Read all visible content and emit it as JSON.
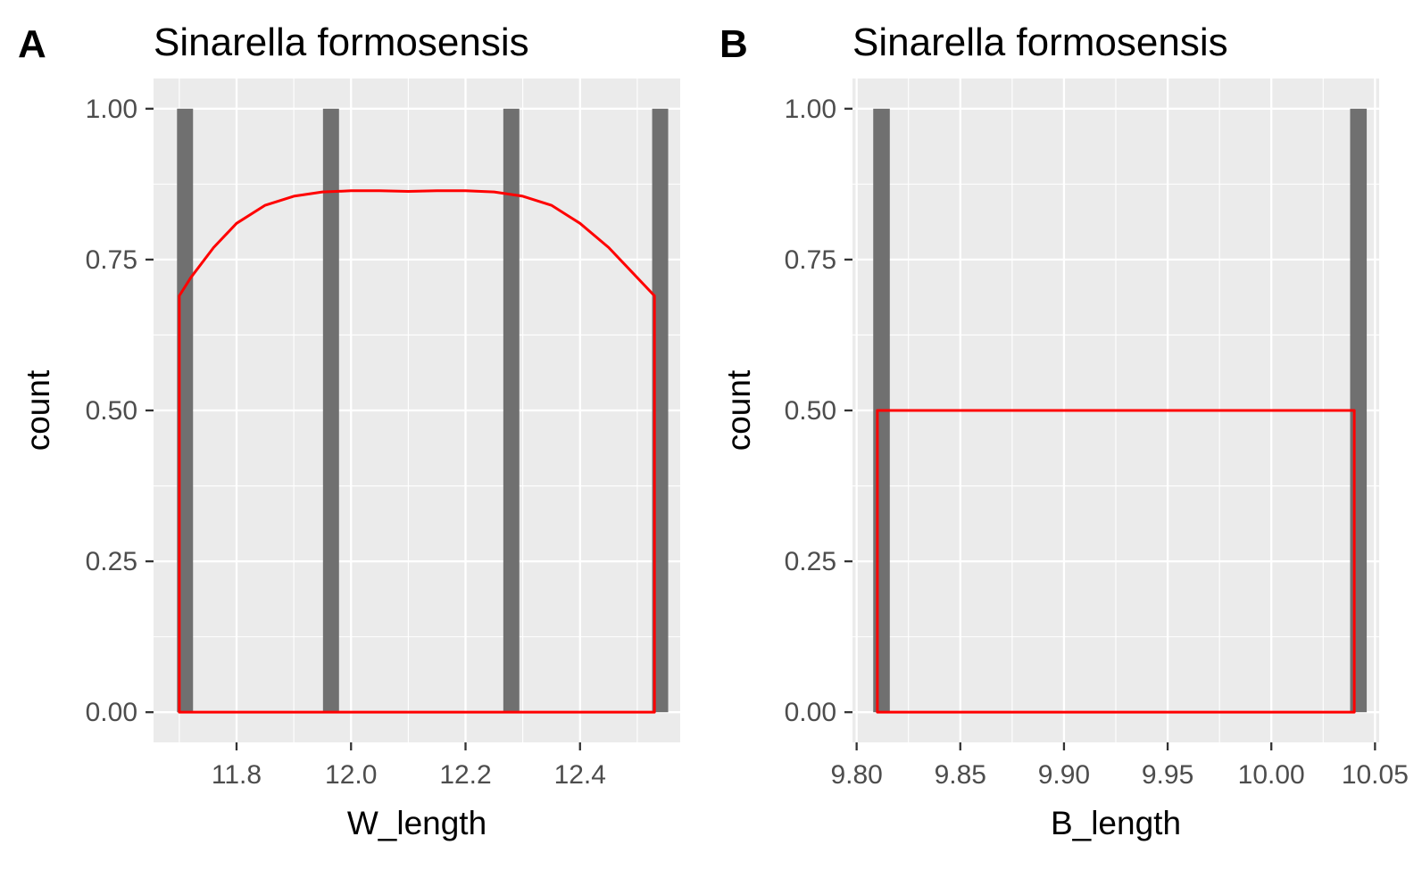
{
  "chart_data": [
    {
      "type": "bar",
      "panel_tag": "A",
      "title": "Sinarella formosensis",
      "xlabel": "W_length",
      "ylabel": "count",
      "xlim": [
        11.655,
        12.575
      ],
      "ylim": [
        -0.05,
        1.05
      ],
      "xticks": [
        11.8,
        12.0,
        12.2,
        12.4
      ],
      "xtick_labels": [
        "11.8",
        "12.0",
        "12.2",
        "12.4"
      ],
      "yticks": [
        0,
        0.25,
        0.5,
        0.75,
        1.0
      ],
      "ytick_labels": [
        "0.00",
        "0.25",
        "0.50",
        "0.75",
        "1.00"
      ],
      "grid": true,
      "bars": [
        {
          "x": 11.71,
          "count": 1
        },
        {
          "x": 11.965,
          "count": 1
        },
        {
          "x": 12.28,
          "count": 1
        },
        {
          "x": 12.54,
          "count": 1
        }
      ],
      "bar_width": 0.028,
      "bar_color": "#707070",
      "density_line": {
        "color": "#ff0000",
        "x": [
          11.7,
          11.72,
          11.76,
          11.8,
          11.85,
          11.9,
          11.95,
          12.0,
          12.05,
          12.1,
          12.15,
          12.2,
          12.25,
          12.3,
          12.35,
          12.4,
          12.45,
          12.49,
          12.53
        ],
        "y": [
          0.69,
          0.72,
          0.77,
          0.81,
          0.84,
          0.855,
          0.862,
          0.864,
          0.864,
          0.863,
          0.864,
          0.864,
          0.862,
          0.855,
          0.84,
          0.81,
          0.77,
          0.73,
          0.69
        ],
        "closed_to_baseline": true
      }
    },
    {
      "type": "bar",
      "panel_tag": "B",
      "title": "Sinarella formosensis",
      "xlabel": "B_length",
      "ylabel": "count",
      "xlim": [
        9.798,
        10.052
      ],
      "ylim": [
        -0.05,
        1.05
      ],
      "xticks": [
        9.8,
        9.85,
        9.9,
        9.95,
        10.0,
        10.05
      ],
      "xtick_labels": [
        "9.80",
        "9.85",
        "9.90",
        "9.95",
        "10.00",
        "10.05"
      ],
      "yticks": [
        0,
        0.25,
        0.5,
        0.75,
        1.0
      ],
      "ytick_labels": [
        "0.00",
        "0.25",
        "0.50",
        "0.75",
        "1.00"
      ],
      "grid": true,
      "bars": [
        {
          "x": 9.812,
          "count": 1
        },
        {
          "x": 10.042,
          "count": 1
        }
      ],
      "bar_width": 0.008,
      "bar_color": "#707070",
      "density_line": {
        "color": "#ff0000",
        "x": [
          9.81,
          10.04
        ],
        "y": [
          0.5,
          0.5
        ],
        "closed_to_baseline": true
      }
    }
  ]
}
